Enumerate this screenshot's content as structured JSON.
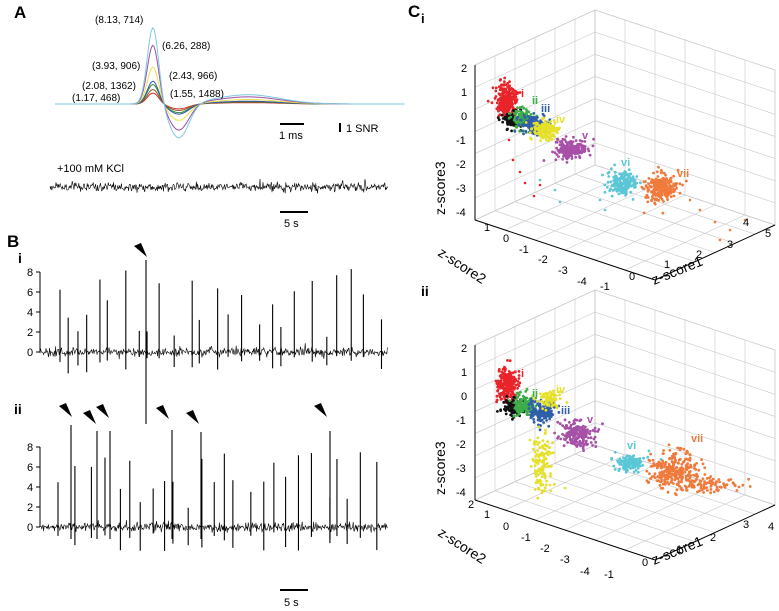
{
  "panel_a": {
    "label": "A",
    "waveforms": [
      {
        "annotation": "(8.13, 714)",
        "amplitude": 8.13,
        "color": "#7ec8e3"
      },
      {
        "annotation": "(6.26, 288)",
        "amplitude": 6.26,
        "color": "#9b4fa5"
      },
      {
        "annotation": "(3.93, 906)",
        "amplitude": 3.93,
        "color": "#e8e24a"
      },
      {
        "annotation": "(2.43, 966)",
        "amplitude": 2.43,
        "color": "#3457a8"
      },
      {
        "annotation": "(2.08, 1362)",
        "amplitude": 2.08,
        "color": "#2e8b3e"
      },
      {
        "annotation": "(1.55, 1488)",
        "amplitude": 1.55,
        "color": "#8a5a2b"
      },
      {
        "annotation": "(1.17, 468)",
        "amplitude": 1.17,
        "color": "#d9322f"
      }
    ],
    "time_scale": "1 ms",
    "amp_scale": "1 SNR",
    "kcl_label": "+100 mM KCl",
    "kcl_time_scale": "5 s"
  },
  "panel_b": {
    "label": "B",
    "sub_i": "i",
    "sub_ii": "ii",
    "y_ticks": [
      "0",
      "2",
      "4",
      "6",
      "8"
    ],
    "time_scale": "5 s"
  },
  "panel_c": {
    "label": "C",
    "sub_i": "i",
    "sub_ii": "ii",
    "axes": {
      "x": "z-score1",
      "y": "z-score2",
      "z": "z-score3"
    },
    "plot_i": {
      "z_ticks": [
        "2",
        "1",
        "0",
        "-1",
        "-2",
        "-3",
        "-4"
      ],
      "y_ticks": [
        "1",
        "0",
        "-1",
        "-2",
        "-3",
        "-4"
      ],
      "x_ticks": [
        "-1",
        "0",
        "1",
        "2",
        "3",
        "4",
        "5"
      ]
    },
    "plot_ii": {
      "z_ticks": [
        "2",
        "1",
        "0",
        "-1",
        "-2",
        "-3",
        "-4"
      ],
      "y_ticks": [
        "2",
        "1",
        "0",
        "-1",
        "-2",
        "-3",
        "-4"
      ],
      "x_ticks": [
        "-1",
        "0",
        "1",
        "2",
        "3",
        "4"
      ]
    },
    "clusters": [
      {
        "name": "i",
        "color": "#e8242a"
      },
      {
        "name": "ii",
        "color": "#3cae49"
      },
      {
        "name": "iii",
        "color": "#2f5fa8"
      },
      {
        "name": "iv",
        "color": "#e6e02a"
      },
      {
        "name": "v",
        "color": "#a650a8"
      },
      {
        "name": "vi",
        "color": "#5bc6d6"
      },
      {
        "name": "vii",
        "color": "#ef7a3c"
      }
    ]
  }
}
